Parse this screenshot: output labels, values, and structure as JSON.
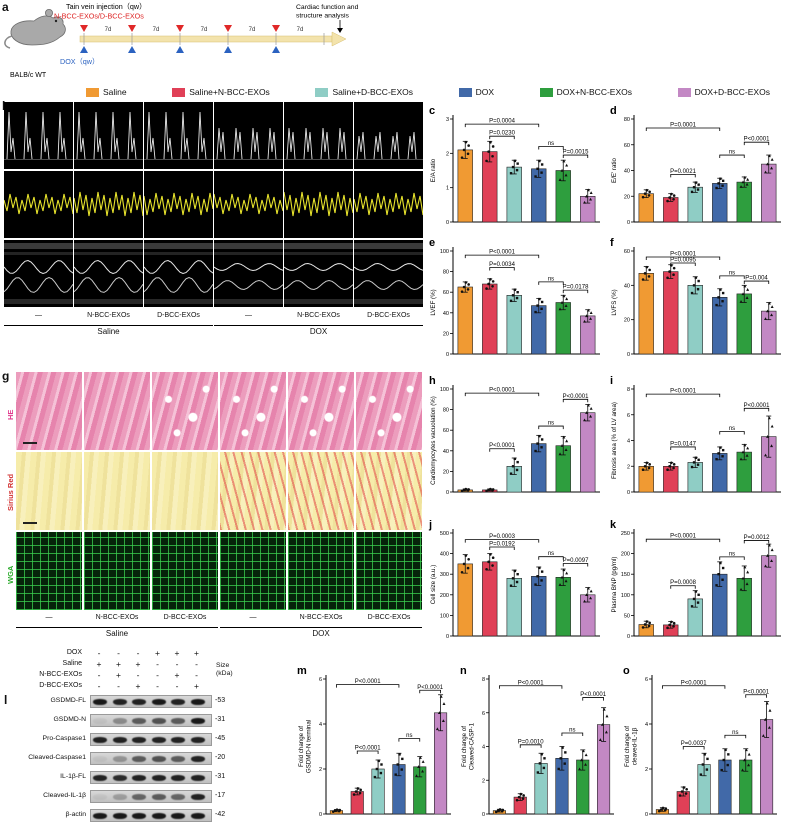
{
  "panel_letters": [
    "a",
    "b",
    "c",
    "d",
    "e",
    "f",
    "g",
    "h",
    "i",
    "j",
    "k",
    "l",
    "m",
    "n",
    "o"
  ],
  "panel_a": {
    "injection_label": "Tain vein injection（qw）",
    "exos_label": "N-BCC-EXOs/D-BCC-EXOs",
    "interval_label": "7d",
    "n_intervals": 5,
    "dox_label": "DOX（qw）",
    "mouse_label": "BALB/c WT",
    "analysis_label": "Cardiac function and structure analysis"
  },
  "legend": {
    "groups": [
      {
        "label": "Saline",
        "color": "#F09A33"
      },
      {
        "label": "Saline+N-BCC-EXOs",
        "color": "#E04057"
      },
      {
        "label": "Saline+D-BCC-EXOs",
        "color": "#8FCDC5"
      },
      {
        "label": "DOX",
        "color": "#4169A8"
      },
      {
        "label": "DOX+N-BCC-EXOs",
        "color": "#2E9E3E"
      },
      {
        "label": "DOX+D-BCC-EXOs",
        "color": "#C388C4"
      }
    ]
  },
  "panel_b": {
    "col_labels": [
      "—",
      "N-BCC-EXOs",
      "D-BCC-EXOs",
      "—",
      "N-BCC-EXOs",
      "D-BCC-EXOs"
    ],
    "group_labels": [
      "Saline",
      "DOX"
    ]
  },
  "panel_g": {
    "row_labels": [
      "HE",
      "Sirius Red",
      "WGA"
    ],
    "row_label_colors": [
      "#E03A8E",
      "#D23333",
      "#2BAA2B"
    ],
    "col_labels": [
      "—",
      "N-BCC-EXOs",
      "D-BCC-EXOs",
      "—",
      "N-BCC-EXOs",
      "D-BCC-EXOs"
    ],
    "group_labels": [
      "Saline",
      "DOX"
    ]
  },
  "panel_l": {
    "conditions": [
      {
        "label": "DOX",
        "values": [
          "-",
          "-",
          "-",
          "+",
          "+",
          "+"
        ]
      },
      {
        "label": "Saline",
        "values": [
          "+",
          "+",
          "+",
          "-",
          "-",
          "-"
        ]
      },
      {
        "label": "N-BCC-EXOs",
        "values": [
          "-",
          "+",
          "-",
          "-",
          "+",
          "-"
        ]
      },
      {
        "label": "D-BCC-EXOs",
        "values": [
          "-",
          "-",
          "+",
          "-",
          "-",
          "+"
        ]
      }
    ],
    "size_header": "Size (kDa)",
    "blots": [
      {
        "label": "GSDMD-FL",
        "size": "-53",
        "bands": [
          0.95,
          0.9,
          0.9,
          0.95,
          0.9,
          0.95
        ]
      },
      {
        "label": "GSDMD-N",
        "size": "-31",
        "bands": [
          0.05,
          0.35,
          0.6,
          0.65,
          0.6,
          0.95
        ]
      },
      {
        "label": "Pro-Caspase1",
        "size": "-45",
        "bands": [
          0.9,
          0.9,
          0.9,
          0.9,
          0.9,
          0.9
        ]
      },
      {
        "label": "Cleaved-Caspase1",
        "size": "-20",
        "bands": [
          0.05,
          0.3,
          0.6,
          0.65,
          0.6,
          0.9
        ]
      },
      {
        "label": "IL-1β-FL",
        "size": "-31",
        "bands": [
          0.9,
          0.85,
          0.9,
          0.9,
          0.9,
          0.9
        ]
      },
      {
        "label": "Cleaved-IL-1β",
        "size": "-17",
        "bands": [
          0.05,
          0.25,
          0.55,
          0.6,
          0.55,
          0.9
        ]
      },
      {
        "label": "β-actin",
        "size": "-42",
        "bands": [
          0.95,
          0.95,
          0.95,
          0.95,
          0.95,
          0.95
        ]
      }
    ]
  },
  "chart_data": {
    "type": "bar",
    "categories": [
      "Saline",
      "Saline+N-BCC-EXOs",
      "Saline+D-BCC-EXOs",
      "DOX",
      "DOX+N-BCC-EXOs",
      "DOX+D-BCC-EXOs"
    ],
    "charts": [
      {
        "panel": "c",
        "ylabel": "E/A ratio",
        "ylim": [
          0,
          3
        ],
        "yticks": [
          0,
          1,
          2,
          3
        ],
        "values": [
          2.1,
          2.05,
          1.6,
          1.55,
          1.5,
          0.75
        ],
        "errors": [
          0.25,
          0.3,
          0.2,
          0.25,
          0.3,
          0.2
        ],
        "annotations": [
          {
            "from": 0,
            "to": 3,
            "y": 2.85,
            "label": "P=0.0004"
          },
          {
            "from": 1,
            "to": 2,
            "y": 2.5,
            "label": "P=0.0230"
          },
          {
            "from": 3,
            "to": 4,
            "y": 2.2,
            "label": "ns"
          },
          {
            "from": 4,
            "to": 5,
            "y": 1.95,
            "label": "P=0.0015"
          }
        ]
      },
      {
        "panel": "d",
        "ylabel": "E/E' ratio",
        "ylim": [
          0,
          80
        ],
        "yticks": [
          0,
          20,
          40,
          60,
          80
        ],
        "values": [
          22,
          19,
          27,
          30,
          31,
          45
        ],
        "errors": [
          3,
          3,
          4,
          4,
          4,
          7
        ],
        "annotations": [
          {
            "from": 0,
            "to": 3,
            "y": 73,
            "label": "P=0.0001"
          },
          {
            "from": 1,
            "to": 2,
            "y": 37,
            "label": "P=0.0021"
          },
          {
            "from": 3,
            "to": 4,
            "y": 52,
            "label": "ns"
          },
          {
            "from": 4,
            "to": 5,
            "y": 62,
            "label": "P<0.0001"
          }
        ]
      },
      {
        "panel": "e",
        "ylabel": "LVEF (%)",
        "ylim": [
          0,
          100
        ],
        "yticks": [
          0,
          20,
          40,
          60,
          80,
          100
        ],
        "values": [
          65,
          68,
          57,
          47,
          50,
          37
        ],
        "errors": [
          5,
          5,
          6,
          7,
          7,
          6
        ],
        "annotations": [
          {
            "from": 0,
            "to": 3,
            "y": 96,
            "label": "P<0.0001"
          },
          {
            "from": 1,
            "to": 2,
            "y": 84,
            "label": "P=0.0034"
          },
          {
            "from": 3,
            "to": 4,
            "y": 70,
            "label": "ns"
          },
          {
            "from": 4,
            "to": 5,
            "y": 62,
            "label": "P=0.0178"
          }
        ]
      },
      {
        "panel": "f",
        "ylabel": "LVFS (%)",
        "ylim": [
          0,
          60
        ],
        "yticks": [
          0,
          20,
          40,
          60
        ],
        "values": [
          47,
          48,
          40,
          33,
          35,
          25
        ],
        "errors": [
          4,
          4,
          5,
          5,
          5,
          5
        ],
        "annotations": [
          {
            "from": 0,
            "to": 3,
            "y": 56.5,
            "label": "P<0.0001"
          },
          {
            "from": 1,
            "to": 2,
            "y": 53,
            "label": "P=0.0095"
          },
          {
            "from": 3,
            "to": 4,
            "y": 45.5,
            "label": "ns"
          },
          {
            "from": 4,
            "to": 5,
            "y": 42.5,
            "label": "P=0.004"
          }
        ]
      },
      {
        "panel": "h",
        "ylabel": "Cardiomyocytes vacuolation (%)",
        "ylim": [
          0,
          100
        ],
        "yticks": [
          0,
          20,
          40,
          60,
          80,
          100
        ],
        "values": [
          2,
          2,
          25,
          47,
          45,
          77
        ],
        "errors": [
          1,
          1,
          8,
          8,
          9,
          8
        ],
        "annotations": [
          {
            "from": 0,
            "to": 3,
            "y": 96,
            "label": "P<0.0001"
          },
          {
            "from": 1,
            "to": 2,
            "y": 42,
            "label": "P<0.0001"
          },
          {
            "from": 3,
            "to": 4,
            "y": 64,
            "label": "ns"
          },
          {
            "from": 4,
            "to": 5,
            "y": 90,
            "label": "P<0.0001"
          }
        ]
      },
      {
        "panel": "i",
        "ylabel": "Fibrosis area (% of LV area)",
        "ylim": [
          0,
          8
        ],
        "yticks": [
          0,
          2,
          4,
          6,
          8
        ],
        "values": [
          2,
          2,
          2.3,
          3,
          3.1,
          4.3
        ],
        "errors": [
          0.3,
          0.3,
          0.4,
          0.5,
          0.6,
          1.6
        ],
        "annotations": [
          {
            "from": 0,
            "to": 3,
            "y": 7.6,
            "label": "P<0.0001"
          },
          {
            "from": 1,
            "to": 2,
            "y": 3.5,
            "label": "P=0.0147"
          },
          {
            "from": 3,
            "to": 4,
            "y": 4.7,
            "label": "ns"
          },
          {
            "from": 4,
            "to": 5,
            "y": 6.5,
            "label": "P<0.0001"
          }
        ]
      },
      {
        "panel": "j",
        "ylabel": "Cell size (a.u.)",
        "ylim": [
          0,
          500
        ],
        "yticks": [
          0,
          100,
          200,
          300,
          400,
          500
        ],
        "values": [
          350,
          360,
          280,
          290,
          285,
          200
        ],
        "errors": [
          45,
          40,
          40,
          45,
          40,
          35
        ],
        "annotations": [
          {
            "from": 0,
            "to": 3,
            "y": 468,
            "label": "P=0.0003"
          },
          {
            "from": 1,
            "to": 2,
            "y": 432,
            "label": "P=0.0192"
          },
          {
            "from": 3,
            "to": 4,
            "y": 385,
            "label": "ns"
          },
          {
            "from": 4,
            "to": 5,
            "y": 352,
            "label": "P=0.0097"
          }
        ]
      },
      {
        "panel": "k",
        "ylabel": "Plasma BNP (pg/ml)",
        "ylim": [
          0,
          250
        ],
        "yticks": [
          0,
          50,
          100,
          150,
          200,
          250
        ],
        "values": [
          28,
          27,
          90,
          150,
          140,
          195
        ],
        "errors": [
          8,
          8,
          20,
          30,
          30,
          28
        ],
        "annotations": [
          {
            "from": 0,
            "to": 3,
            "y": 235,
            "label": "P<0.0001"
          },
          {
            "from": 1,
            "to": 2,
            "y": 122,
            "label": "P=0.0008"
          },
          {
            "from": 3,
            "to": 4,
            "y": 192,
            "label": "ns"
          },
          {
            "from": 4,
            "to": 5,
            "y": 232,
            "label": "P=0.0012"
          }
        ]
      },
      {
        "panel": "m",
        "ylabel": "Fold change of\nGSDMD-N terminal",
        "ylim": [
          0,
          6
        ],
        "yticks": [
          0,
          2,
          4,
          6
        ],
        "values": [
          0.15,
          1,
          2,
          2.2,
          2.1,
          4.5
        ],
        "errors": [
          0.05,
          0.15,
          0.4,
          0.5,
          0.45,
          0.8
        ],
        "annotations": [
          {
            "from": 0,
            "to": 3,
            "y": 5.75,
            "label": "P<0.0001"
          },
          {
            "from": 1,
            "to": 2,
            "y": 2.8,
            "label": "P<0.0001"
          },
          {
            "from": 3,
            "to": 4,
            "y": 3.35,
            "label": "ns"
          },
          {
            "from": 4,
            "to": 5,
            "y": 5.5,
            "label": "P<0.0001"
          }
        ]
      },
      {
        "panel": "n",
        "ylabel": "Fold change of\nCleaved-CASP-1",
        "ylim": [
          0,
          8
        ],
        "yticks": [
          0,
          2,
          4,
          6,
          8
        ],
        "values": [
          0.2,
          1,
          3,
          3.3,
          3.2,
          5.3
        ],
        "errors": [
          0.08,
          0.2,
          0.6,
          0.7,
          0.6,
          1
        ],
        "annotations": [
          {
            "from": 0,
            "to": 3,
            "y": 7.6,
            "label": "P<0.0001"
          },
          {
            "from": 1,
            "to": 2,
            "y": 4.1,
            "label": "P=0.0010"
          },
          {
            "from": 3,
            "to": 4,
            "y": 4.8,
            "label": "ns"
          },
          {
            "from": 4,
            "to": 5,
            "y": 6.9,
            "label": "P<0.0001"
          }
        ]
      },
      {
        "panel": "o",
        "ylabel": "Fold change of\ncleaved-IL-1β",
        "ylim": [
          0,
          6
        ],
        "yticks": [
          0,
          2,
          4,
          6
        ],
        "values": [
          0.2,
          1,
          2.2,
          2.4,
          2.4,
          4.2
        ],
        "errors": [
          0.08,
          0.2,
          0.5,
          0.5,
          0.5,
          0.8
        ],
        "annotations": [
          {
            "from": 0,
            "to": 3,
            "y": 5.7,
            "label": "P<0.0001"
          },
          {
            "from": 1,
            "to": 2,
            "y": 3.0,
            "label": "P=0.0037"
          },
          {
            "from": 3,
            "to": 4,
            "y": 3.5,
            "label": "ns"
          },
          {
            "from": 4,
            "to": 5,
            "y": 5.3,
            "label": "P<0.0001"
          }
        ]
      }
    ]
  }
}
